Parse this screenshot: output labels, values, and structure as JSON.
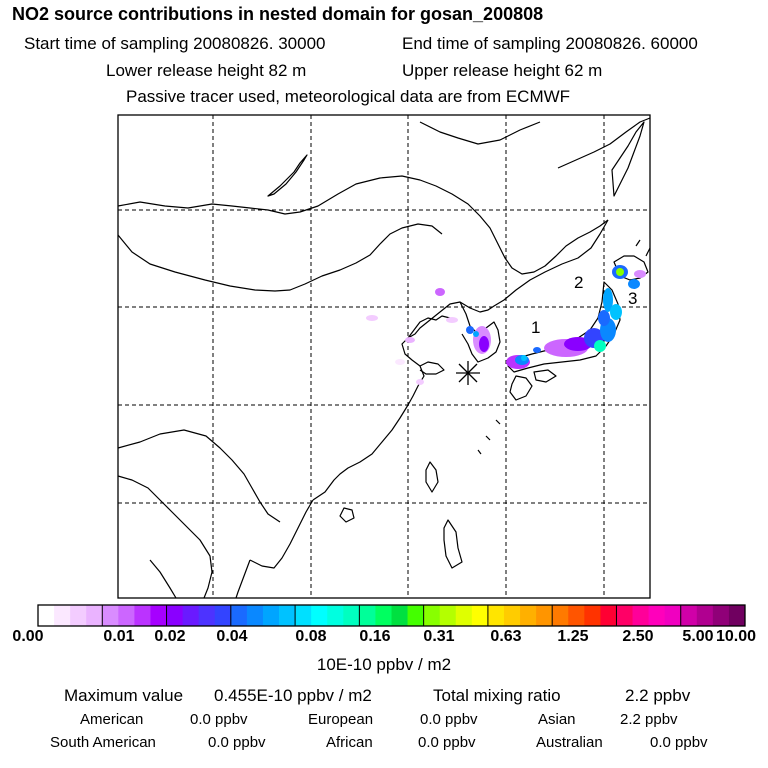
{
  "header": {
    "title": "NO2 source contributions in nested domain for gosan_200808",
    "start_label": "Start time of sampling 20080826. 30000",
    "end_label": "End time of sampling 20080826. 60000",
    "lower_label": "Lower release height   82 m",
    "upper_label": "Upper release height   62 m",
    "tracer_note": "Passive tracer used, meteorological data are from ECMWF"
  },
  "map": {
    "receptor_symbol": "asterisk",
    "region_labels": [
      "1",
      "2",
      "3"
    ]
  },
  "colorbar": {
    "ticks": [
      "0.00",
      "0.01",
      "0.02",
      "0.04",
      "0.08",
      "0.16",
      "0.31",
      "0.63",
      "1.25",
      "2.50",
      "5.00",
      "10.00"
    ],
    "unit": "10E-10 ppbv / m2",
    "colors": [
      [
        "#ffffff",
        "#fbe8ff",
        "#f3ccff",
        "#eab3ff"
      ],
      [
        "#d98cff",
        "#cc66ff",
        "#bb33ff",
        "#a600ff"
      ],
      [
        "#8a00ff",
        "#6a1aff",
        "#4d33ff",
        "#3344ff"
      ],
      [
        "#1a6aff",
        "#0a88ff",
        "#00a5ff",
        "#00c2ff"
      ],
      [
        "#00e0ff",
        "#00ffff",
        "#00ffe0",
        "#00ffc0"
      ],
      [
        "#00ff99",
        "#00ff60",
        "#00e040",
        "#44ff00"
      ],
      [
        "#88ff00",
        "#b4ff00",
        "#dfff00",
        "#ffff00"
      ],
      [
        "#ffe500",
        "#ffcc00",
        "#ffb000",
        "#ff9500"
      ],
      [
        "#ff7a00",
        "#ff5500",
        "#ff3300",
        "#ff0033"
      ],
      [
        "#ff0066",
        "#ff0099",
        "#ff00bb",
        "#f000c0"
      ],
      [
        "#d000a8",
        "#b00090",
        "#900078",
        "#700060"
      ]
    ]
  },
  "summary": {
    "max_label": "Maximum value",
    "max_value": "0.455E-10 ppbv / m2",
    "total_label": "Total mixing ratio",
    "total_value": "2.2 ppbv"
  },
  "regions": [
    {
      "name": "American",
      "value": "0.0 ppbv"
    },
    {
      "name": "European",
      "value": "0.0 ppbv"
    },
    {
      "name": "Asian",
      "value": "2.2 ppbv"
    },
    {
      "name": "South American",
      "value": "0.0 ppbv"
    },
    {
      "name": "African",
      "value": "0.0 ppbv"
    },
    {
      "name": "Australian",
      "value": "0.0 ppbv"
    }
  ]
}
